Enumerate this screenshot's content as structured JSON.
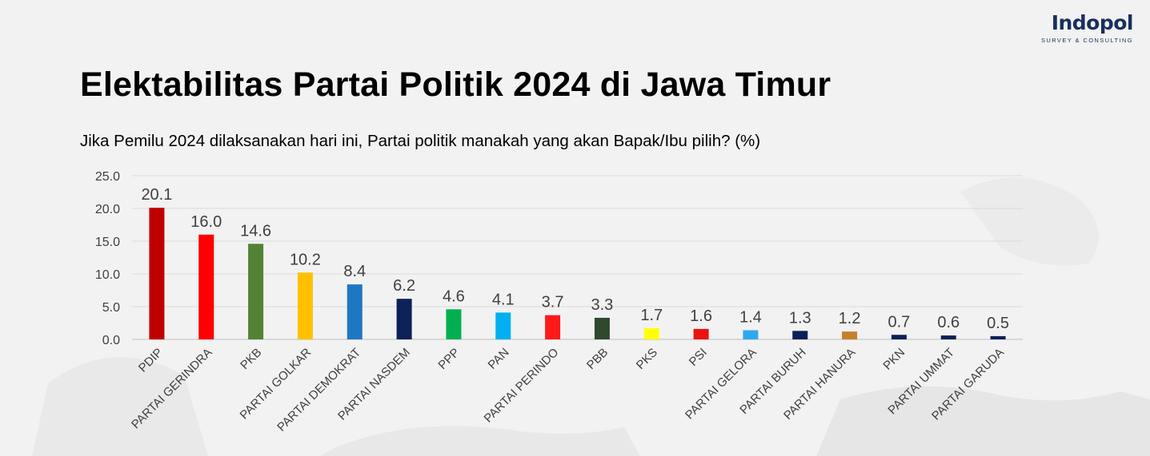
{
  "title": "Elektabilitas Partai Politik 2024 di Jawa Timur",
  "subtitle": "Jika Pemilu 2024 dilaksanakan hari ini, Partai politik manakah yang akan Bapak/Ibu pilih? (%)",
  "logo": {
    "name": "Indopol",
    "tagline": "SURVEY & CONSULTING"
  },
  "chart_data": {
    "type": "bar",
    "title": "Elektabilitas Partai Politik 2024 di Jawa Timur",
    "categories": [
      "PDIP",
      "PARTAI GERINDRA",
      "PKB",
      "PARTAI GOLKAR",
      "PARTAI DEMOKRAT",
      "PARTAI NASDEM",
      "PPP",
      "PAN",
      "PARTAI PERINDO",
      "PBB",
      "PKS",
      "PSI",
      "PARTAI GELORA",
      "PARTAI BURUH",
      "PARTAI HANURA",
      "PKN",
      "PARTAI UMMAT",
      "PARTAI GARUDA"
    ],
    "values": [
      20.1,
      16.0,
      14.6,
      10.2,
      8.4,
      6.2,
      4.6,
      4.1,
      3.7,
      3.3,
      1.7,
      1.6,
      1.4,
      1.3,
      1.2,
      0.7,
      0.6,
      0.5
    ],
    "value_labels": [
      "20.1",
      "16.0",
      "14.6",
      "10.2",
      "8.4",
      "6.2",
      "4.6",
      "4.1",
      "3.7",
      "3.3",
      "1.7",
      "1.6",
      "1.4",
      "1.3",
      "1.2",
      "0.7",
      "0.6",
      "0.5"
    ],
    "colors": [
      "#c00000",
      "#ff0000",
      "#548235",
      "#ffc000",
      "#1f77c4",
      "#0c2157",
      "#00b050",
      "#00b0f0",
      "#ff1a1a",
      "#2d4a2d",
      "#ffff00",
      "#ee1111",
      "#2ea9f0",
      "#0c2157",
      "#c67f2e",
      "#0c2157",
      "#0c2157",
      "#0c2157"
    ],
    "yticks": [
      "0.0",
      "5.0",
      "10.0",
      "15.0",
      "20.0",
      "25.0"
    ],
    "ylim": [
      0,
      25
    ],
    "xlabel": "",
    "ylabel": "",
    "grid": true,
    "legend": "none"
  }
}
